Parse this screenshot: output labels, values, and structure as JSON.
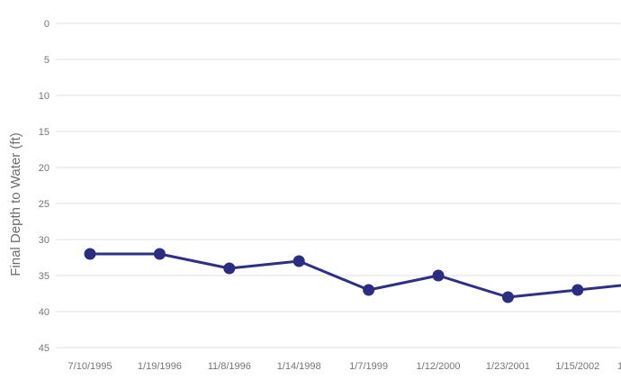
{
  "chart_data": {
    "type": "line",
    "title": "",
    "xlabel": "",
    "ylabel": "Final Depth to Water (ft)",
    "categories": [
      "7/10/1995",
      "1/19/1996",
      "11/8/1996",
      "1/14/1998",
      "1/7/1999",
      "1/12/2000",
      "1/23/2001",
      "1/15/2002"
    ],
    "series": [
      {
        "name": "Final Depth to Water",
        "values": [
          32,
          32,
          34,
          33,
          37,
          35,
          38,
          37
        ]
      }
    ],
    "next_point_offscreen": {
      "label_fragment": "1",
      "value": 36
    },
    "y_ticks": [
      0,
      5,
      10,
      15,
      20,
      25,
      30,
      35,
      40,
      45
    ],
    "ylim": [
      0,
      45
    ],
    "y_axis_inverted": true,
    "grid": "horizontal-only",
    "legend": "none",
    "marker": "filled-circle",
    "colors": {
      "line": "#2d3089",
      "marker": "#2b2e80",
      "grid": "#e1e1e1",
      "tick_label": "#757575",
      "axis_title": "#6e6e6e",
      "background": "#ffffff"
    }
  }
}
